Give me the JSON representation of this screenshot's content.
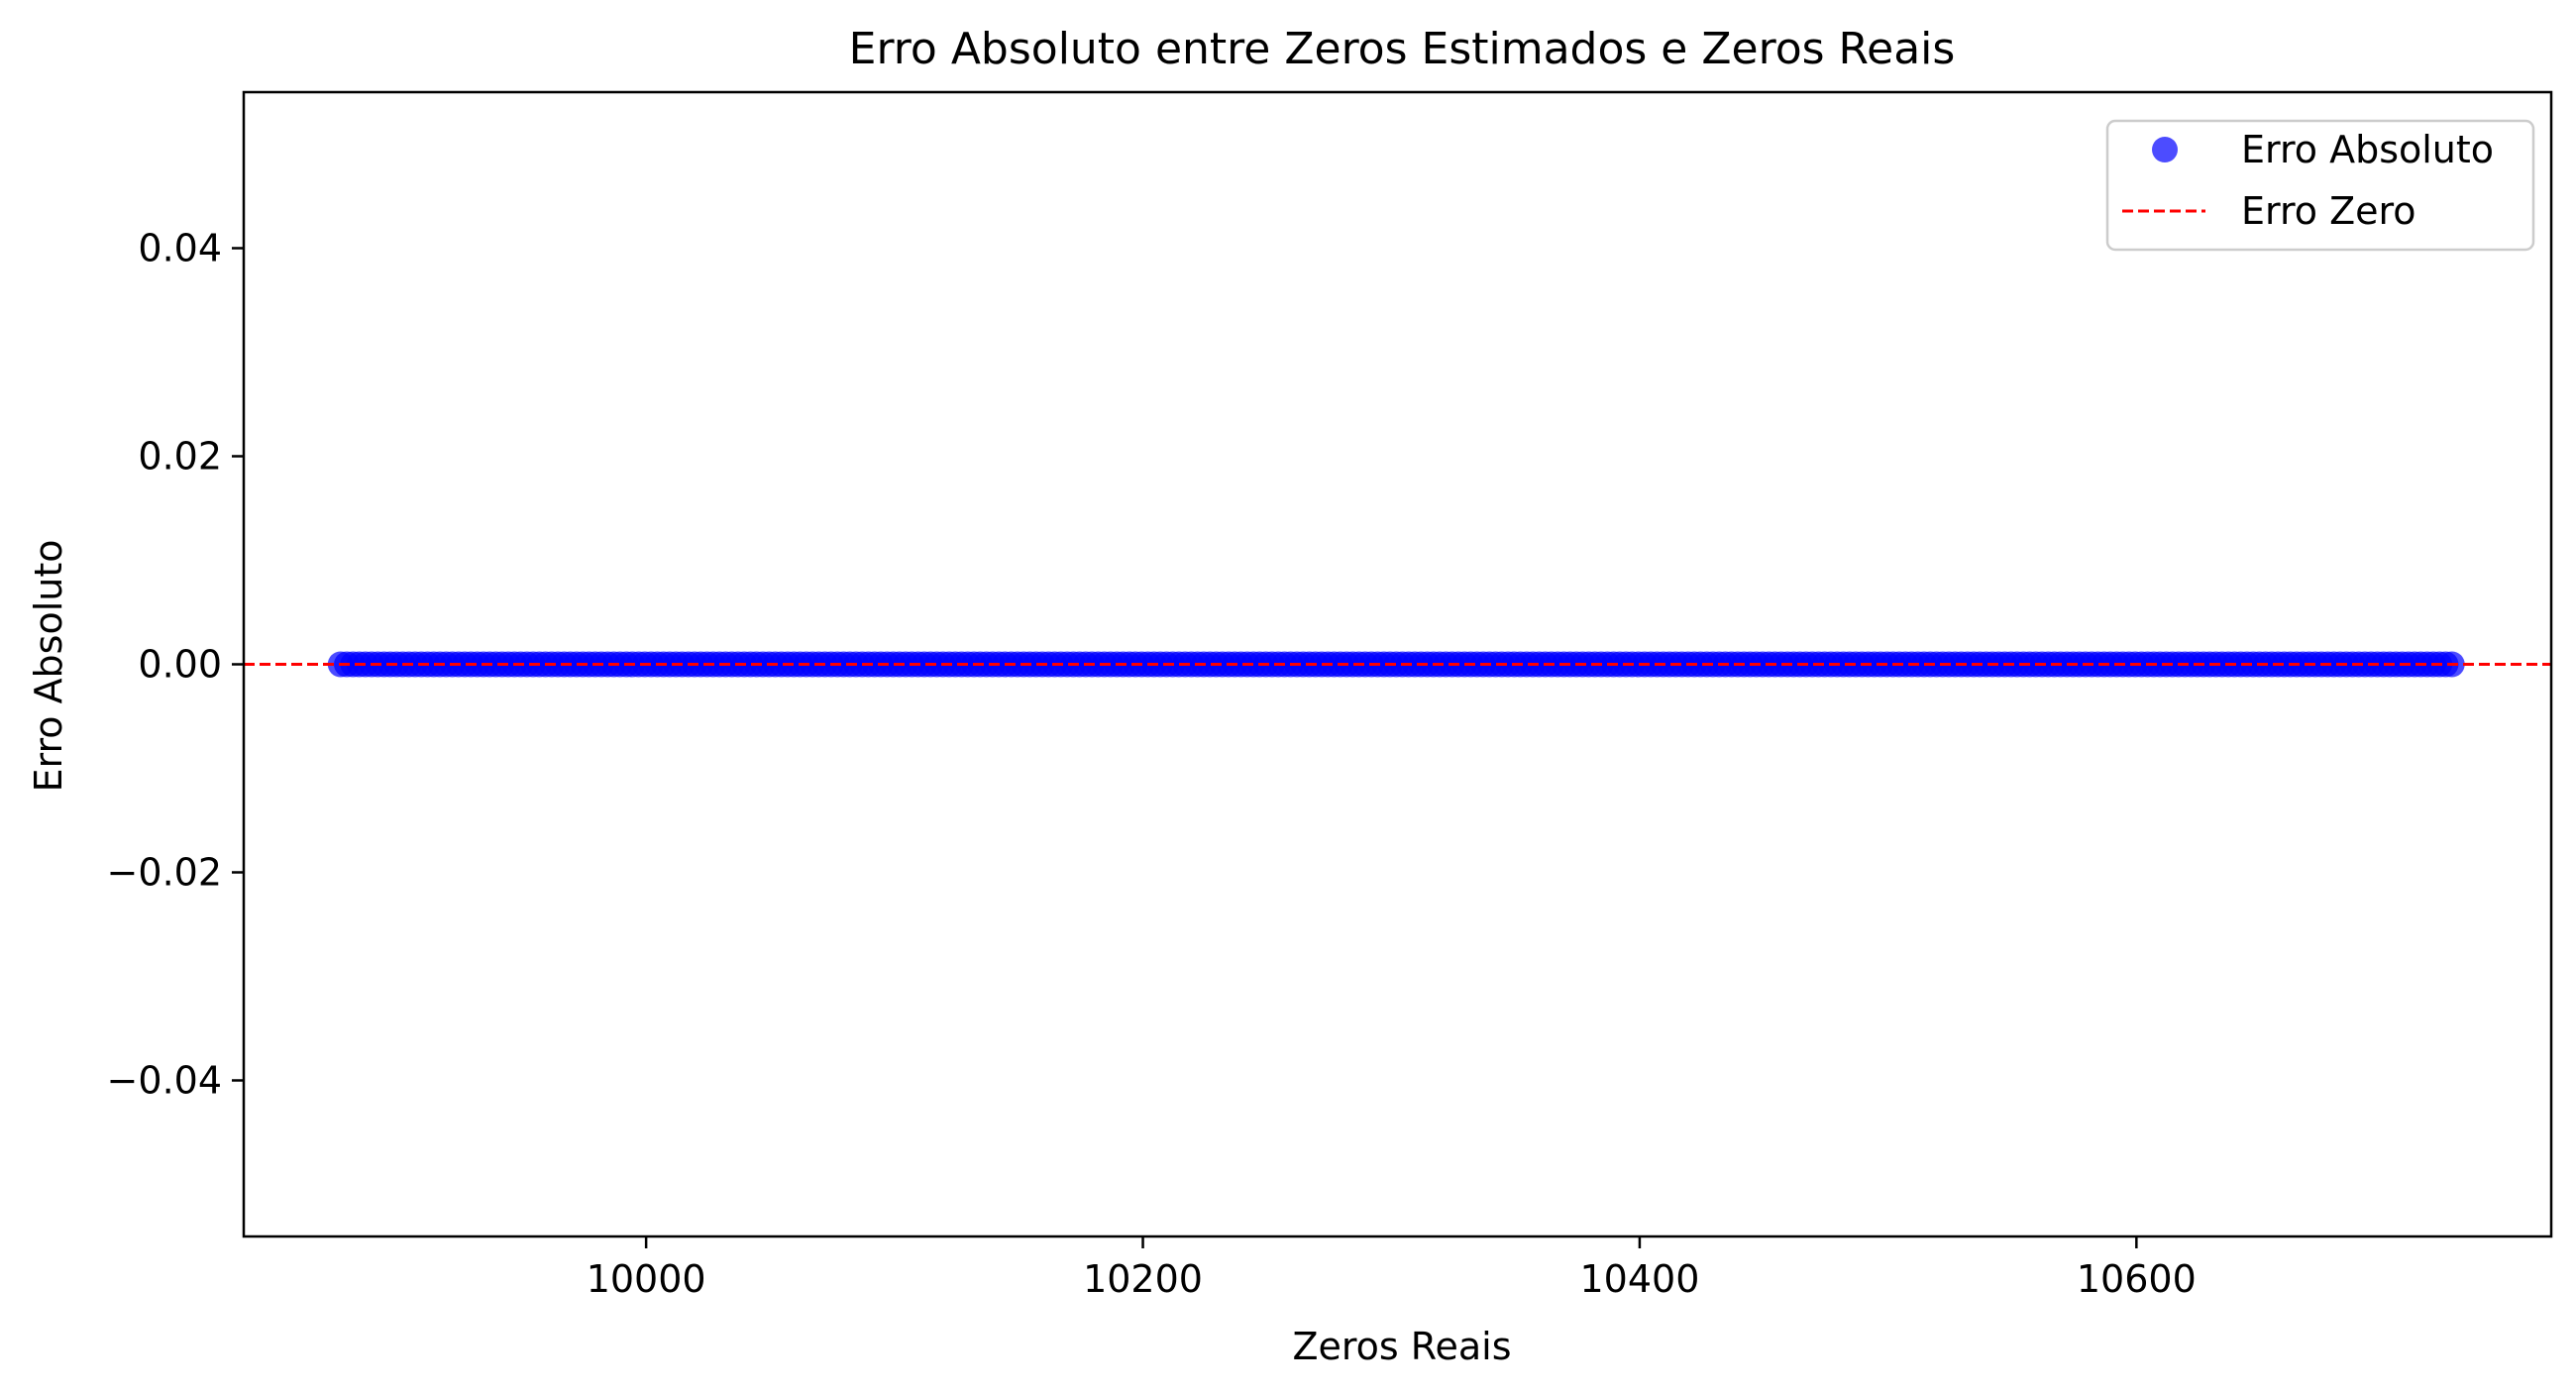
{
  "chart_data": {
    "type": "scatter",
    "title": "Erro Absoluto entre Zeros Estimados e Zeros Reais",
    "xlabel": "Zeros Reais",
    "ylabel": "Erro Absoluto",
    "xlim": [
      9838,
      10767
    ],
    "ylim": [
      -0.055,
      0.055
    ],
    "xticks": [
      10000,
      10200,
      10400,
      10600
    ],
    "xtick_labels": [
      "10000",
      "10200",
      "10400",
      "10600"
    ],
    "yticks": [
      0.04,
      0.02,
      0.0,
      -0.02,
      -0.04
    ],
    "ytick_labels": [
      "0.04",
      "0.02",
      "0.00",
      "−0.02",
      "−0.04"
    ],
    "grid": false,
    "legend": {
      "position": "top-right",
      "entries": [
        {
          "label": "Erro Absoluto",
          "marker": "circle",
          "color": "#0000ff"
        },
        {
          "label": "Erro Zero",
          "marker": "dashed-line",
          "color": "#ff0000"
        }
      ]
    },
    "series": [
      {
        "name": "Erro Absoluto",
        "kind": "scatter",
        "color": "#0000ff",
        "opacity": 0.7,
        "x_start": 9877,
        "x_end": 10727,
        "count": 341,
        "y": 0.0
      }
    ],
    "reference_lines": [
      {
        "name": "Erro Zero",
        "orientation": "horizontal",
        "y": 0.0,
        "style": "dashed",
        "color": "#ff0000"
      }
    ]
  }
}
